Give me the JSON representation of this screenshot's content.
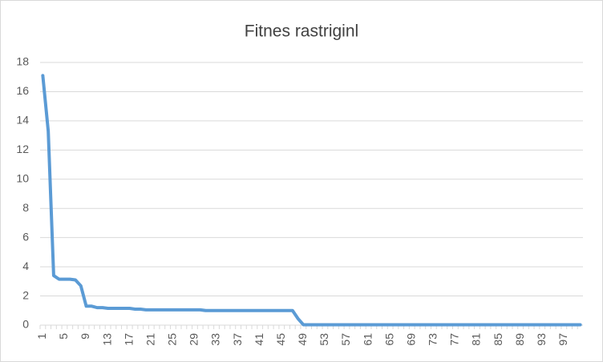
{
  "chart_data": {
    "type": "line",
    "title": "Fitnes rastriginl",
    "categories": [
      "1",
      null,
      null,
      null,
      "5",
      null,
      null,
      null,
      "9",
      null,
      null,
      null,
      "13",
      null,
      null,
      null,
      "17",
      null,
      null,
      null,
      "21",
      null,
      null,
      null,
      "25",
      null,
      null,
      null,
      "29",
      null,
      null,
      null,
      "33",
      null,
      null,
      null,
      "37",
      null,
      null,
      null,
      "41",
      null,
      null,
      null,
      "45",
      null,
      null,
      null,
      "49",
      null,
      null,
      null,
      "53",
      null,
      null,
      null,
      "57",
      null,
      null,
      null,
      "61",
      null,
      null,
      null,
      "65",
      null,
      null,
      null,
      "69",
      null,
      null,
      null,
      "73",
      null,
      null,
      null,
      "77",
      null,
      null,
      null,
      "81",
      null,
      null,
      null,
      "85",
      null,
      null,
      null,
      "89",
      null,
      null,
      null,
      "93",
      null,
      null,
      null,
      "97",
      null,
      null,
      null
    ],
    "series": [
      {
        "color": "#5b9bd5",
        "values": [
          17.1,
          13.3,
          3.4,
          3.15,
          3.15,
          3.15,
          3.1,
          2.7,
          1.3,
          1.3,
          1.2,
          1.2,
          1.15,
          1.15,
          1.15,
          1.15,
          1.15,
          1.1,
          1.1,
          1.05,
          1.05,
          1.05,
          1.05,
          1.05,
          1.05,
          1.05,
          1.05,
          1.05,
          1.05,
          1.05,
          1.0,
          1.0,
          1.0,
          1.0,
          1.0,
          1.0,
          1.0,
          1.0,
          1.0,
          1.0,
          1.0,
          1.0,
          1.0,
          1.0,
          1.0,
          1.0,
          1.0,
          0.45,
          0.03,
          0.03,
          0.03,
          0.03,
          0.03,
          0.03,
          0.03,
          0.03,
          0.03,
          0.03,
          0.03,
          0.03,
          0.03,
          0.03,
          0.03,
          0.03,
          0.03,
          0.03,
          0.03,
          0.03,
          0.03,
          0.03,
          0.03,
          0.03,
          0.03,
          0.03,
          0.03,
          0.03,
          0.03,
          0.03,
          0.03,
          0.03,
          0.03,
          0.03,
          0.03,
          0.03,
          0.03,
          0.03,
          0.03,
          0.03,
          0.03,
          0.03,
          0.03,
          0.03,
          0.03,
          0.03,
          0.03,
          0.03,
          0.03,
          0.03,
          0.03,
          0.03
        ]
      }
    ],
    "ylim": [
      0,
      18
    ],
    "yticks": [
      0,
      2,
      4,
      6,
      8,
      10,
      12,
      14,
      16,
      18
    ],
    "grid": true
  }
}
